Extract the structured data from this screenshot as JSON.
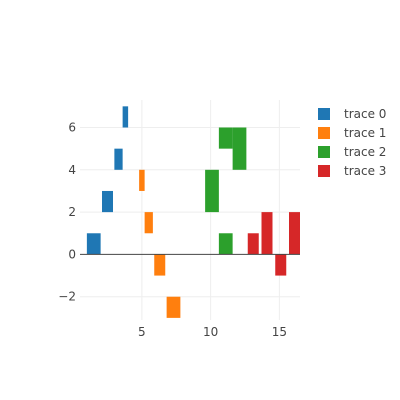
{
  "chart_data": {
    "type": "bar",
    "title": "",
    "xlabel": "",
    "ylabel": "",
    "xlim": [
      0.5,
      16.5
    ],
    "ylim": [
      -3.1,
      7.3
    ],
    "grid": true,
    "legend_position": "top-right",
    "x_ticks": [
      5,
      10,
      15
    ],
    "y_ticks": [
      -2,
      0,
      2,
      4,
      6
    ],
    "series": [
      {
        "name": "trace 0",
        "color": "#1f77b4",
        "bars": [
          {
            "x": 1.5,
            "base": 0,
            "top": 1,
            "width": 1.0
          },
          {
            "x": 2.5,
            "base": 2,
            "top": 3,
            "width": 0.8
          },
          {
            "x": 3.3,
            "base": 4,
            "top": 5,
            "width": 0.6
          },
          {
            "x": 3.8,
            "base": 6,
            "top": 7,
            "width": 0.4
          }
        ]
      },
      {
        "name": "trace 1",
        "color": "#ff7f0e",
        "bars": [
          {
            "x": 5.0,
            "base": 3,
            "top": 4,
            "width": 0.4
          },
          {
            "x": 5.5,
            "base": 1,
            "top": 2,
            "width": 0.6
          },
          {
            "x": 6.3,
            "base": -1,
            "top": 0,
            "width": 0.8
          },
          {
            "x": 7.3,
            "base": -3,
            "top": -2,
            "width": 1.0
          }
        ]
      },
      {
        "name": "trace 2",
        "color": "#2ca02c",
        "bars": [
          {
            "x": 10.1,
            "base": 2,
            "top": 4,
            "width": 1.0
          },
          {
            "x": 11.1,
            "base": 0,
            "top": 1,
            "width": 1.0
          },
          {
            "x": 11.1,
            "base": 5,
            "top": 6,
            "width": 1.0
          },
          {
            "x": 12.1,
            "base": 4,
            "top": 6,
            "width": 1.0
          }
        ]
      },
      {
        "name": "trace 3",
        "color": "#d62728",
        "bars": [
          {
            "x": 13.1,
            "base": 0,
            "top": 1,
            "width": 0.8
          },
          {
            "x": 14.1,
            "base": 0,
            "top": 2,
            "width": 0.8
          },
          {
            "x": 15.1,
            "base": -1,
            "top": 0,
            "width": 0.8
          },
          {
            "x": 16.1,
            "base": 0,
            "top": 2,
            "width": 0.8
          }
        ]
      }
    ]
  }
}
